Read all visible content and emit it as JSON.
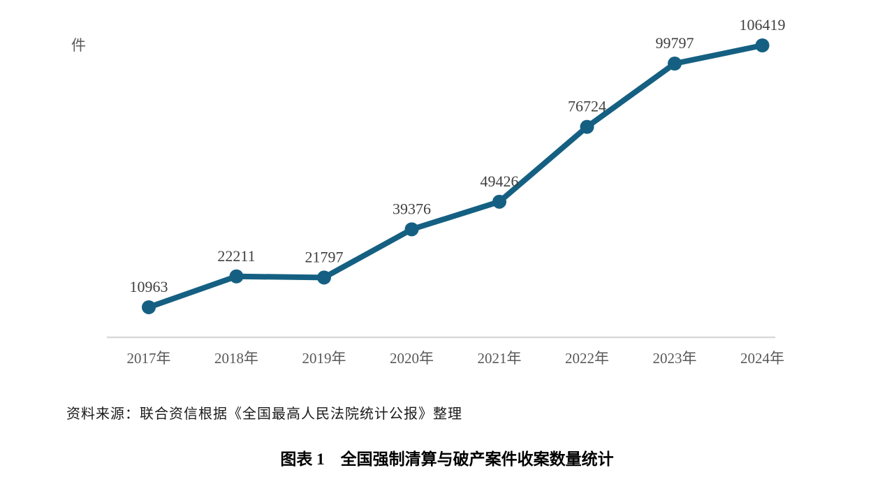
{
  "unit_label": "件",
  "source_note": "资料来源：联合资信根据《全国最高人民法院统计公报》整理",
  "caption": "图表 1　全国强制清算与破产案件收案数量统计",
  "chart_data": {
    "type": "line",
    "title": "全国强制清算与破产案件收案数量统计",
    "categories": [
      "2017年",
      "2018年",
      "2019年",
      "2020年",
      "2021年",
      "2022年",
      "2023年",
      "2024年"
    ],
    "values": [
      10963,
      22211,
      21797,
      39376,
      49426,
      76724,
      99797,
      106419
    ],
    "ylabel": "件",
    "ylim": [
      0,
      106419
    ],
    "grid": false,
    "legend": "none",
    "data_labels": "above",
    "line_color": "#156082",
    "marker_color": "#156082",
    "data_label_color": "#404040",
    "tick_label_color": "#595959",
    "axis_line_color": "#d9d9d9"
  }
}
